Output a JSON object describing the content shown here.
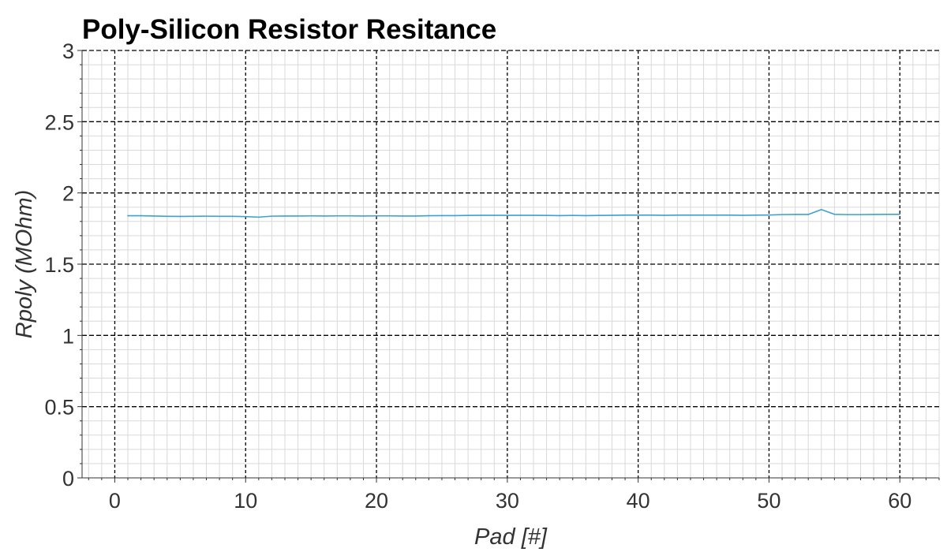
{
  "chart_data": {
    "type": "line",
    "title": "Poly-Silicon Resistor Resitance",
    "xlabel": "Pad [#]",
    "ylabel": "Rpoly (MOhm)",
    "xlim": [
      -2.5,
      63
    ],
    "ylim": [
      0,
      3
    ],
    "xticks": [
      0,
      10,
      20,
      30,
      40,
      50,
      60
    ],
    "xtick_labels": [
      "0",
      "10",
      "20",
      "30",
      "40",
      "50",
      "60"
    ],
    "yticks": [
      0,
      0.5,
      1,
      1.5,
      2,
      2.5,
      3
    ],
    "ytick_labels": [
      "0",
      "0.5",
      "1",
      "1.5",
      "2",
      "2.5",
      "3"
    ],
    "grid": true,
    "legend": "none",
    "colors": {
      "series": "#3ca2d4",
      "major_grid": "#000000",
      "minor_grid": "#d9d9d9",
      "axis": "#333333"
    },
    "series": [
      {
        "x": [
          1,
          2,
          3,
          4,
          5,
          6,
          7,
          8,
          9,
          10,
          11,
          12,
          13,
          14,
          15,
          16,
          17,
          18,
          19,
          20,
          21,
          22,
          23,
          24,
          25,
          26,
          27,
          28,
          29,
          30,
          31,
          32,
          33,
          34,
          35,
          36,
          37,
          38,
          39,
          40,
          41,
          42,
          43,
          44,
          45,
          46,
          47,
          48,
          49,
          50,
          51,
          52,
          53,
          54,
          55,
          56,
          57,
          58,
          59,
          60
        ],
        "values": [
          1.84,
          1.84,
          1.838,
          1.836,
          1.835,
          1.836,
          1.837,
          1.836,
          1.836,
          1.834,
          1.83,
          1.837,
          1.838,
          1.838,
          1.839,
          1.838,
          1.839,
          1.839,
          1.838,
          1.839,
          1.839,
          1.838,
          1.838,
          1.84,
          1.841,
          1.841,
          1.842,
          1.843,
          1.843,
          1.843,
          1.843,
          1.843,
          1.842,
          1.841,
          1.842,
          1.841,
          1.842,
          1.843,
          1.844,
          1.844,
          1.844,
          1.843,
          1.844,
          1.844,
          1.844,
          1.844,
          1.844,
          1.843,
          1.844,
          1.845,
          1.848,
          1.849,
          1.849,
          1.883,
          1.85,
          1.848,
          1.848,
          1.849,
          1.85,
          1.85
        ]
      }
    ]
  }
}
